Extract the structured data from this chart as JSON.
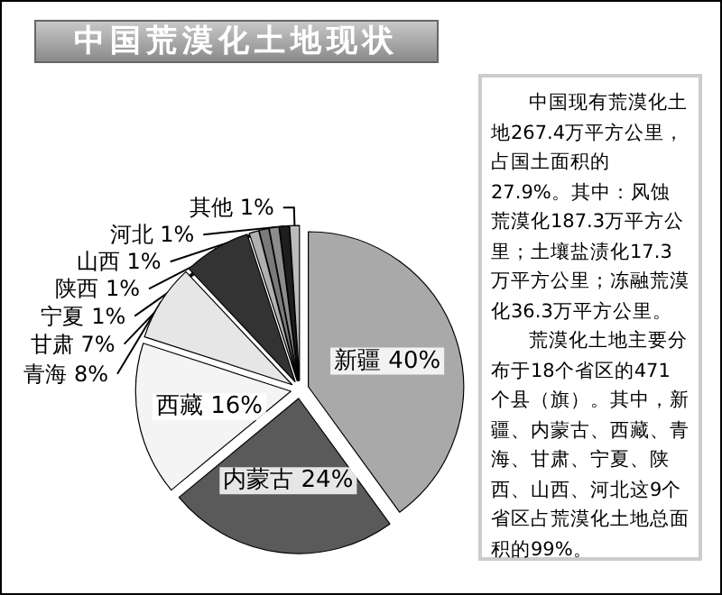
{
  "chart_data": {
    "type": "pie",
    "title": "中国荒漠化土地现状",
    "categories": [
      "新疆",
      "内蒙古",
      "西藏",
      "青海",
      "甘肃",
      "宁夏",
      "陕西",
      "山西",
      "河北",
      "其他"
    ],
    "values": [
      40,
      24,
      16,
      8,
      7,
      1,
      1,
      1,
      1,
      1
    ],
    "colors": [
      "#a9a9a9",
      "#5a5a5a",
      "#f4f4f4",
      "#e6e6e6",
      "#333333",
      "#b0b0b0",
      "#7a7a7a",
      "#8c8c8c",
      "#1e1e1e",
      "#bcbcbc"
    ],
    "value_labels": [
      "40%",
      "24%",
      "16%",
      "8%",
      "7%",
      "1%",
      "1%",
      "1%",
      "1%",
      "1%"
    ],
    "annotations": [
      "中国现有荒漠化土地267.4万平方公里，占国土面积的27.9%。其中：风蚀荒漠化187.3万平方公里；土壤盐渍化17.3万平方公里；冻融荒漠化36.3万平方公里。",
      "荒漠化土地主要分布于18个省区的471个县（旗）。其中，新疆、内蒙古、西藏、青海、甘肃、宁夏、陕西、山西、河北这9个省区占荒漠化土地总面积的99%。"
    ]
  }
}
